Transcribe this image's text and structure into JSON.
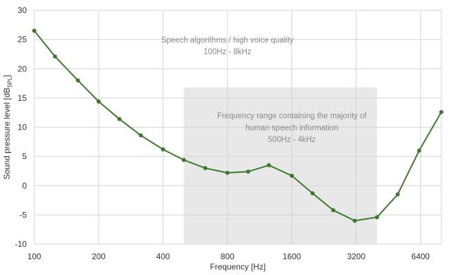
{
  "chart_data": {
    "type": "line",
    "title": "",
    "xlabel": "Frequency [Hz]",
    "ylabel": "Sound pressure level [dBSPL]",
    "ylabel_parts": {
      "main": "Sound pressure level [dB",
      "sub": "SPL",
      "close": "]"
    },
    "x_scale": "log2",
    "xlim": [
      100,
      8000
    ],
    "ylim": [
      -10,
      30
    ],
    "grid": true,
    "x_ticks": [
      100,
      200,
      400,
      800,
      1600,
      3200,
      6400
    ],
    "x_tick_labels": [
      "100",
      "200",
      "400",
      "800",
      "1600",
      "3200",
      "6400"
    ],
    "y_ticks": [
      -10,
      -5,
      0,
      5,
      10,
      15,
      20,
      25,
      30
    ],
    "y_tick_labels": [
      "-10",
      "-5",
      "0",
      "5",
      "10",
      "15",
      "20",
      "25",
      "30"
    ],
    "series": [
      {
        "x": [
          100,
          125,
          160,
          200,
          250,
          315,
          400,
          500,
          630,
          800,
          1000,
          1250,
          1600,
          2000,
          2500,
          3150,
          4000,
          5000,
          6300,
          8000
        ],
        "values": [
          26.5,
          22.1,
          18.0,
          14.4,
          11.4,
          8.6,
          6.2,
          4.4,
          3.0,
          2.2,
          2.4,
          3.5,
          1.7,
          -1.3,
          -4.2,
          -6.0,
          -5.4,
          -1.5,
          6.0,
          12.6
        ],
        "color": "#3a7a2a"
      }
    ],
    "shaded_band": {
      "x_range": [
        500,
        4000
      ],
      "y_range": [
        -10,
        16.8
      ],
      "color": "#e8e8e8"
    },
    "annotations": [
      {
        "text": "Speech algorithms / high voice quality",
        "x": 800,
        "y": 24.5
      },
      {
        "text": "100Hz - 8kHz",
        "x": 800,
        "y": 22.5
      },
      {
        "text": "Frequency range containing the majority of",
        "x": 1600,
        "y": 11.5
      },
      {
        "text": "human speech information",
        "x": 1600,
        "y": 9.5
      },
      {
        "text": "500Hz - 4kHz",
        "x": 1600,
        "y": 7.5
      }
    ]
  }
}
